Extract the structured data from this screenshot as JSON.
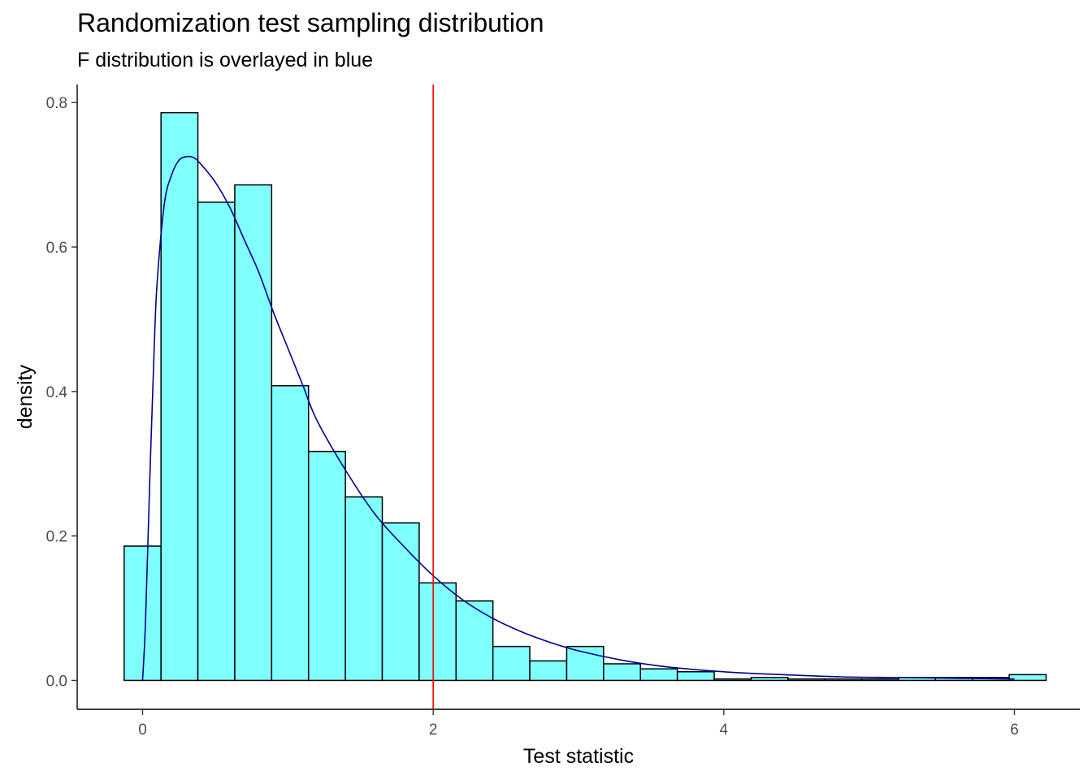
{
  "chart_data": {
    "type": "bar",
    "title": "Randomization test sampling distribution",
    "subtitle": "F distribution is overlayed in blue",
    "xlabel": "Test statistic",
    "ylabel": "density",
    "xlim": [
      -0.45,
      6.45
    ],
    "ylim": [
      -0.04,
      0.825
    ],
    "x_ticks": [
      0,
      2,
      4,
      6
    ],
    "y_ticks": [
      0.0,
      0.2,
      0.4,
      0.6,
      0.8
    ],
    "x_tick_labels": [
      "0",
      "2",
      "4",
      "6"
    ],
    "y_tick_labels": [
      "0.0",
      "0.2",
      "0.4",
      "0.6",
      "0.8"
    ],
    "grid": false,
    "bin_width": 0.2538,
    "bin_centers": [
      0,
      0.2538,
      0.5076,
      0.7614,
      1.0152,
      1.269,
      1.5228,
      1.7766,
      2.0304,
      2.2842,
      2.538,
      2.7918,
      3.0456,
      3.2994,
      3.5532,
      3.807,
      4.0608,
      4.3146,
      4.5684,
      4.8222,
      5.076,
      5.3298,
      5.5836,
      5.8374,
      6.0912
    ],
    "values": [
      0.186,
      0.786,
      0.662,
      0.686,
      0.408,
      0.317,
      0.254,
      0.218,
      0.135,
      0.11,
      0.047,
      0.027,
      0.047,
      0.023,
      0.016,
      0.012,
      0.002,
      0.004,
      0.002,
      0.002,
      0.002,
      0.004,
      0.004,
      0.004,
      0.008
    ],
    "bar_fill": "#80FFFF",
    "bar_outline": "#000000",
    "reference_line": {
      "x": 2.0,
      "color": "#FF0000"
    },
    "f_density_curve": {
      "color": "#00008B",
      "x": [
        0,
        0.02,
        0.05,
        0.08,
        0.1,
        0.15,
        0.2,
        0.25,
        0.3,
        0.35,
        0.4,
        0.5,
        0.6,
        0.7,
        0.8,
        0.9,
        1.0,
        1.1,
        1.2,
        1.4,
        1.6,
        1.8,
        2.0,
        2.2,
        2.4,
        2.6,
        2.8,
        3.0,
        3.3,
        3.6,
        4.0,
        4.4,
        4.8,
        5.2,
        5.6,
        6.0
      ],
      "y": [
        0,
        0.08,
        0.28,
        0.46,
        0.55,
        0.66,
        0.7,
        0.72,
        0.725,
        0.724,
        0.715,
        0.69,
        0.655,
        0.61,
        0.565,
        0.51,
        0.46,
        0.41,
        0.36,
        0.29,
        0.23,
        0.185,
        0.145,
        0.112,
        0.087,
        0.068,
        0.053,
        0.041,
        0.028,
        0.019,
        0.012,
        0.008,
        0.005,
        0.004,
        0.003,
        0.002
      ]
    }
  }
}
